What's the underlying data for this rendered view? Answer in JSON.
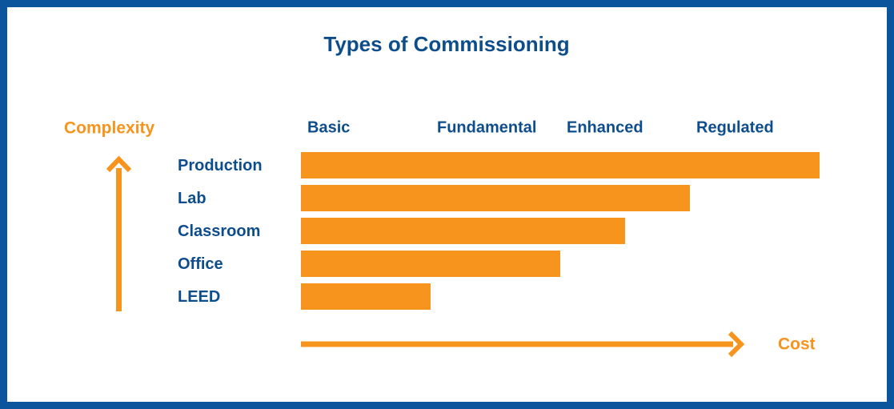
{
  "chart_data": {
    "type": "bar",
    "orientation": "horizontal",
    "title": "Types of Commissioning",
    "y_label": "Complexity",
    "x_label": "Cost",
    "categories": [
      "Production",
      "Lab",
      "Classroom",
      "Office",
      "LEED"
    ],
    "values": [
      4,
      3,
      2.5,
      2,
      1
    ],
    "color": "#f7941d",
    "xlim": [
      0,
      4
    ],
    "xticks": [
      {
        "value": 0,
        "label": "Basic"
      },
      {
        "value": 1,
        "label": "Fundamental"
      },
      {
        "value": 2,
        "label": "Enhanced"
      },
      {
        "value": 3,
        "label": "Regulated"
      }
    ]
  }
}
